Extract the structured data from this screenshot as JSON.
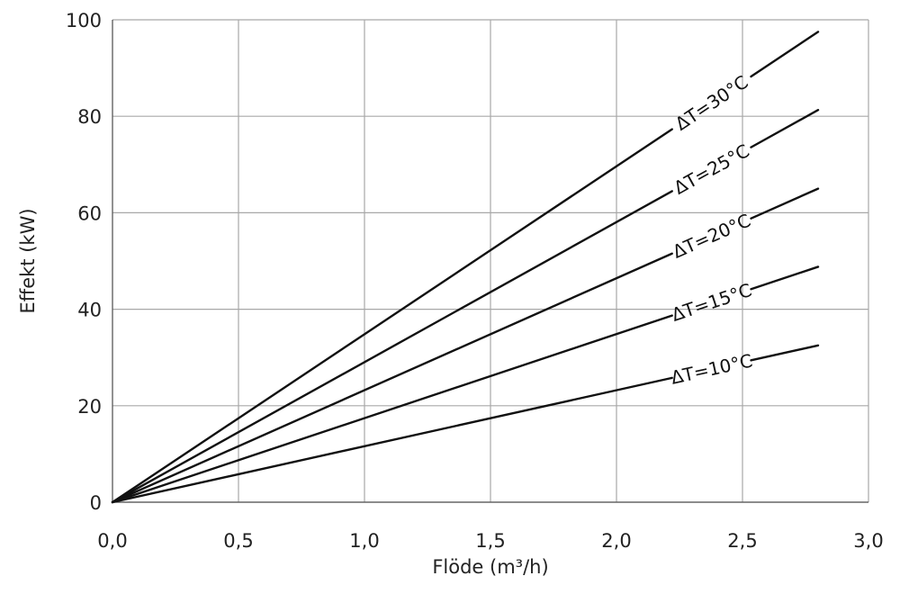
{
  "chart_data": {
    "type": "line",
    "title": "",
    "xlabel": "Flöde (m³/h)",
    "ylabel": "Effekt (kW)",
    "xlim": [
      0,
      3
    ],
    "ylim": [
      0,
      100
    ],
    "x_ticks": [
      "0,0",
      "0,5",
      "1,0",
      "1,5",
      "2,0",
      "2,5",
      "3,0"
    ],
    "y_ticks": [
      "0",
      "20",
      "40",
      "60",
      "80",
      "100"
    ],
    "grid": true,
    "series": [
      {
        "name": "ΔT=30°C",
        "x": [
          0,
          2.8
        ],
        "values": [
          0,
          97.5
        ]
      },
      {
        "name": "ΔT=25°C",
        "x": [
          0,
          2.8
        ],
        "values": [
          0,
          81.3
        ]
      },
      {
        "name": "ΔT=20°C",
        "x": [
          0,
          2.8
        ],
        "values": [
          0,
          65.0
        ]
      },
      {
        "name": "ΔT=15°C",
        "x": [
          0,
          2.8
        ],
        "values": [
          0,
          48.8
        ]
      },
      {
        "name": "ΔT=10°C",
        "x": [
          0,
          2.8
        ],
        "values": [
          0,
          32.5
        ]
      }
    ]
  }
}
